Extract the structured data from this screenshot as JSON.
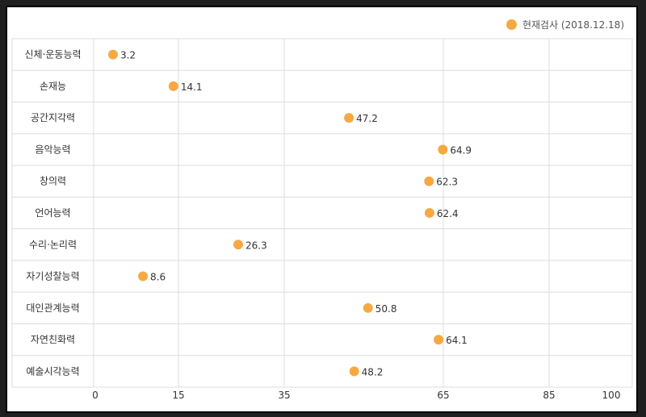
{
  "legend": {
    "label": "현재검사 (2018.12.18)"
  },
  "colors": {
    "point": "#F7A941",
    "grid": "#dddddd",
    "frame": "#000000"
  },
  "chart_data": {
    "type": "scatter",
    "categories": [
      "신체·운동능력",
      "손재능",
      "공간지각력",
      "음악능력",
      "창의력",
      "언어능력",
      "수리·논리력",
      "자기성찰능력",
      "대인관계능력",
      "자연친화력",
      "예술시각능력"
    ],
    "series": [
      {
        "name": "현재검사 (2018.12.18)",
        "values": [
          3.2,
          14.1,
          47.2,
          64.9,
          62.3,
          62.4,
          26.3,
          8.6,
          50.8,
          64.1,
          48.2
        ]
      }
    ],
    "x_ticks": [
      0,
      15,
      35,
      65,
      85,
      100
    ],
    "xlim": [
      0,
      100
    ],
    "grid": true,
    "legend_position": "top-right"
  }
}
